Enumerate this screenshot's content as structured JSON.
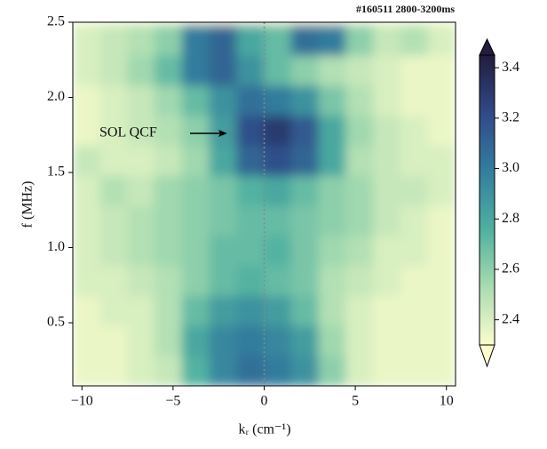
{
  "chart_data": {
    "type": "heatmap",
    "corner_text": "#160511 2800-3200ms",
    "xlabel": "kᵣ (cm⁻¹)",
    "ylabel": "f (MHz)",
    "annotation": "SOL QCF",
    "x": [
      -9.75,
      -8.25,
      -6.75,
      -5.25,
      -3.75,
      -2.25,
      -0.75,
      0.75,
      2.25,
      3.75,
      5.25,
      6.75,
      8.25,
      9.75
    ],
    "y": [
      0.18,
      0.38,
      0.58,
      0.78,
      0.98,
      1.18,
      1.38,
      1.58,
      1.78,
      1.98,
      2.18,
      2.38
    ],
    "z": [
      [
        2.35,
        2.35,
        2.4,
        2.45,
        2.75,
        2.95,
        3.05,
        3.0,
        2.9,
        2.6,
        2.4,
        2.35,
        2.35,
        2.35
      ],
      [
        2.35,
        2.35,
        2.4,
        2.5,
        2.8,
        2.95,
        3.0,
        2.95,
        2.85,
        2.55,
        2.4,
        2.35,
        2.35,
        2.35
      ],
      [
        2.35,
        2.4,
        2.4,
        2.5,
        2.7,
        2.85,
        2.9,
        2.85,
        2.7,
        2.5,
        2.4,
        2.35,
        2.35,
        2.35
      ],
      [
        2.4,
        2.4,
        2.45,
        2.5,
        2.6,
        2.7,
        2.75,
        2.7,
        2.65,
        2.5,
        2.45,
        2.4,
        2.35,
        2.35
      ],
      [
        2.4,
        2.45,
        2.5,
        2.55,
        2.6,
        2.7,
        2.7,
        2.75,
        2.65,
        2.55,
        2.5,
        2.4,
        2.4,
        2.35
      ],
      [
        2.4,
        2.45,
        2.5,
        2.55,
        2.6,
        2.65,
        2.7,
        2.7,
        2.65,
        2.6,
        2.55,
        2.45,
        2.4,
        2.35
      ],
      [
        2.4,
        2.5,
        2.45,
        2.55,
        2.6,
        2.65,
        2.75,
        2.8,
        2.7,
        2.6,
        2.55,
        2.45,
        2.45,
        2.4
      ],
      [
        2.45,
        2.4,
        2.4,
        2.45,
        2.55,
        2.8,
        3.1,
        3.2,
        3.1,
        2.8,
        2.5,
        2.45,
        2.4,
        2.4
      ],
      [
        2.35,
        2.4,
        2.45,
        2.5,
        2.6,
        2.85,
        3.2,
        3.3,
        3.15,
        2.8,
        2.55,
        2.45,
        2.4,
        2.35
      ],
      [
        2.35,
        2.4,
        2.45,
        2.55,
        2.7,
        2.9,
        3.05,
        3.0,
        2.9,
        2.65,
        2.5,
        2.4,
        2.35,
        2.35
      ],
      [
        2.4,
        2.45,
        2.55,
        2.7,
        3.0,
        3.1,
        2.9,
        2.7,
        2.6,
        2.5,
        2.45,
        2.4,
        2.35,
        2.35
      ],
      [
        2.4,
        2.45,
        2.5,
        2.6,
        3.0,
        3.1,
        2.8,
        2.7,
        3.05,
        3.0,
        2.6,
        2.45,
        2.5,
        2.4
      ]
    ],
    "xlim": [
      -10.5,
      10.5
    ],
    "xticks": [
      {
        "value": -10,
        "label": "−10"
      },
      {
        "value": -5,
        "label": "−5"
      },
      0,
      5,
      10
    ],
    "ylim": [
      0.08,
      2.5
    ],
    "yticks": [
      0.5,
      {
        "value": 1.0,
        "label": "1.0"
      },
      1.5,
      {
        "value": 2.0,
        "label": "2.0"
      },
      2.5
    ],
    "zlim": [
      2.3,
      3.45
    ],
    "zticks": [
      2.4,
      2.6,
      2.8,
      {
        "value": 3.0,
        "label": "3.0"
      },
      3.2,
      3.4
    ],
    "colorscale": [
      "#fdfdcc",
      "#a8dcb0",
      "#4fb0a0",
      "#337e9e",
      "#2f4a88",
      "#231c3d"
    ],
    "vline": 0,
    "vline_color": "#888888"
  }
}
